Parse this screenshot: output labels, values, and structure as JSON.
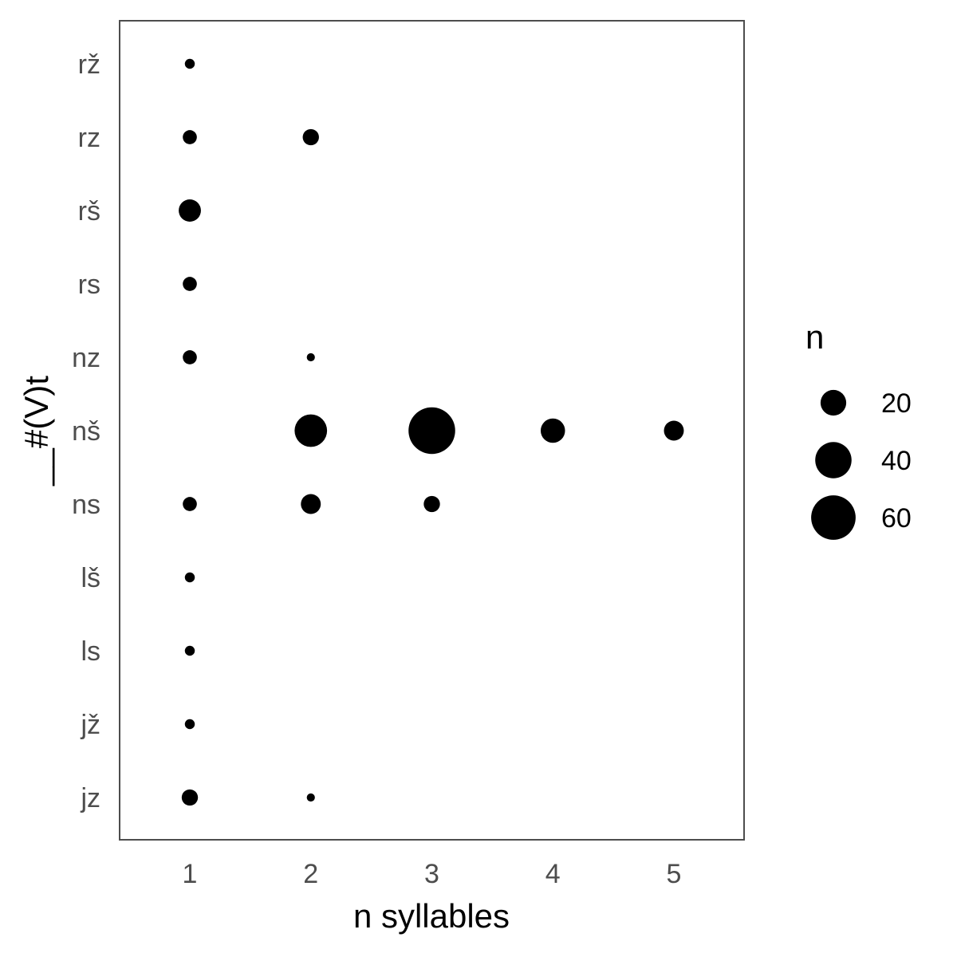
{
  "chart_data": {
    "type": "scatter",
    "xlabel": "n syllables",
    "ylabel": "__#(V)t",
    "x_ticks": [
      "1",
      "2",
      "3",
      "4",
      "5"
    ],
    "xlim": [
      0.42,
      5.58
    ],
    "categories": [
      "jz",
      "jž",
      "ls",
      "lš",
      "ns",
      "nš",
      "nz",
      "rs",
      "rš",
      "rz",
      "rž"
    ],
    "grid": false,
    "size_legend": {
      "title": "n",
      "entries": [
        {
          "value": 20,
          "label": "20"
        },
        {
          "value": 40,
          "label": "40"
        },
        {
          "value": 60,
          "label": "60"
        }
      ]
    },
    "points": [
      {
        "category": "rž",
        "x": 1,
        "n": 3
      },
      {
        "category": "rz",
        "x": 1,
        "n": 6
      },
      {
        "category": "rz",
        "x": 2,
        "n": 8
      },
      {
        "category": "rš",
        "x": 1,
        "n": 15
      },
      {
        "category": "rs",
        "x": 1,
        "n": 6
      },
      {
        "category": "nz",
        "x": 1,
        "n": 6
      },
      {
        "category": "nz",
        "x": 2,
        "n": 2
      },
      {
        "category": "nš",
        "x": 2,
        "n": 32
      },
      {
        "category": "nš",
        "x": 3,
        "n": 66
      },
      {
        "category": "nš",
        "x": 4,
        "n": 18
      },
      {
        "category": "nš",
        "x": 5,
        "n": 12
      },
      {
        "category": "ns",
        "x": 1,
        "n": 6
      },
      {
        "category": "ns",
        "x": 2,
        "n": 12
      },
      {
        "category": "ns",
        "x": 3,
        "n": 8
      },
      {
        "category": "lš",
        "x": 1,
        "n": 3
      },
      {
        "category": "ls",
        "x": 1,
        "n": 3
      },
      {
        "category": "jž",
        "x": 1,
        "n": 3
      },
      {
        "category": "jz",
        "x": 1,
        "n": 8
      },
      {
        "category": "jz",
        "x": 2,
        "n": 2
      }
    ],
    "colors": {
      "point": "#000000",
      "panel_border": "#4d4d4d",
      "tick_label": "#4d4d4d"
    }
  }
}
